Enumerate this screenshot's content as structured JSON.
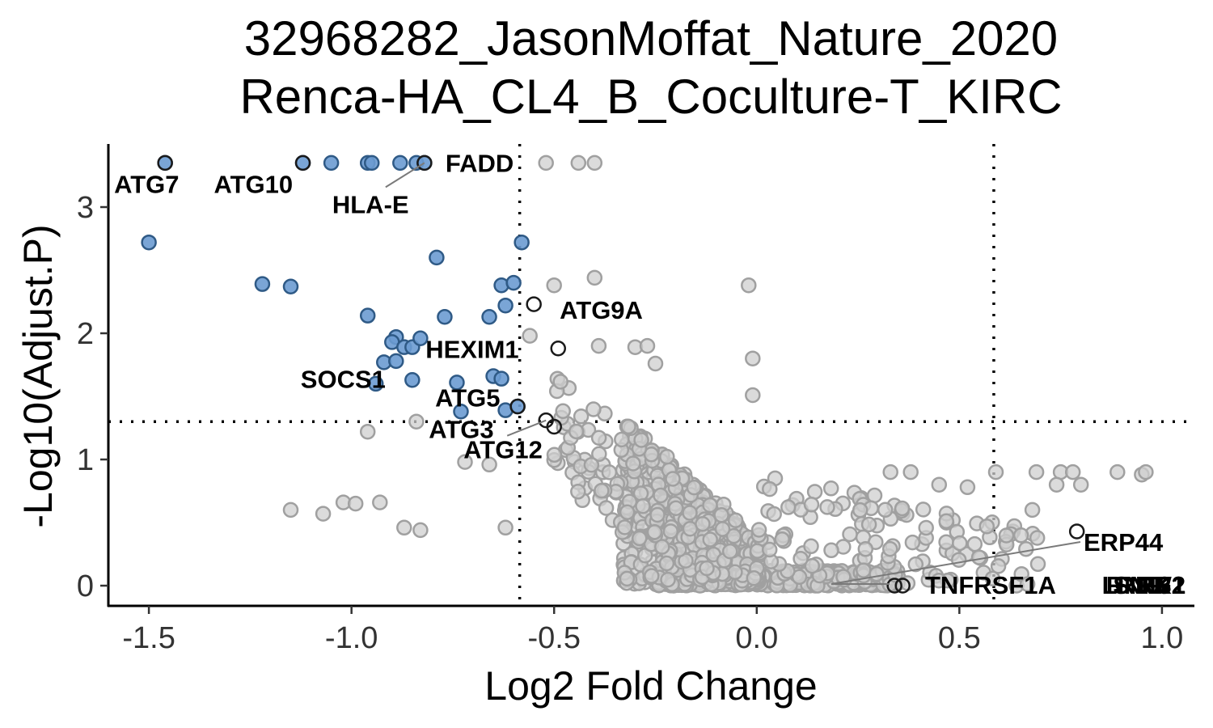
{
  "chart_data": {
    "type": "scatter",
    "title": "32968282_JasonMoffat_Nature_2020",
    "subtitle": "Renca-HA_CL4_B_Coculture-T_KIRC",
    "xlabel": "Log2 Fold Change",
    "ylabel": "-Log10(Adjust.P)",
    "xlim": [
      -1.6,
      1.08
    ],
    "ylim": [
      -0.16,
      3.5
    ],
    "xticks": [
      -1.5,
      -1.0,
      -0.5,
      0.0,
      0.5,
      1.0
    ],
    "xtick_labels": [
      "-1.5",
      "-1.0",
      "-0.5",
      "0.0",
      "0.5",
      "1.0"
    ],
    "yticks": [
      0,
      1,
      2,
      3
    ],
    "ytick_labels": [
      "0",
      "1",
      "2",
      "3"
    ],
    "thresholds": {
      "x": [
        -0.585,
        0.585
      ],
      "y": 1.3
    },
    "grid": false,
    "legend": "none",
    "colors": {
      "down": "#6b9bd1",
      "down_edge": "#2f5a86",
      "ns": "#cfcfcf",
      "ns_edge": "#a0a0a0",
      "highlight_edge": "#1a1a1a",
      "line": "#000000"
    },
    "series": [
      {
        "group": "down",
        "points": [
          [
            -1.46,
            3.35
          ],
          [
            -1.12,
            3.35
          ],
          [
            -1.05,
            3.35
          ],
          [
            -0.96,
            3.35
          ],
          [
            -0.95,
            3.35
          ],
          [
            -0.88,
            3.35
          ],
          [
            -0.84,
            3.35
          ],
          [
            -0.82,
            3.35
          ],
          [
            -1.5,
            2.72
          ],
          [
            -0.58,
            2.72
          ],
          [
            -0.79,
            2.6
          ],
          [
            -1.22,
            2.39
          ],
          [
            -1.15,
            2.37
          ],
          [
            -0.63,
            2.38
          ],
          [
            -0.6,
            2.4
          ],
          [
            -0.62,
            2.22
          ],
          [
            -0.96,
            2.14
          ],
          [
            -0.77,
            2.13
          ],
          [
            -0.66,
            2.13
          ],
          [
            -0.89,
            1.97
          ],
          [
            -0.9,
            1.93
          ],
          [
            -0.87,
            1.89
          ],
          [
            -0.85,
            1.89
          ],
          [
            -0.83,
            1.96
          ],
          [
            -0.92,
            1.77
          ],
          [
            -0.89,
            1.78
          ],
          [
            -0.85,
            1.63
          ],
          [
            -0.74,
            1.61
          ],
          [
            -0.94,
            1.6
          ],
          [
            -0.65,
            1.66
          ],
          [
            -0.63,
            1.64
          ],
          [
            -0.73,
            1.38
          ],
          [
            -0.62,
            1.39
          ],
          [
            -0.59,
            1.42
          ]
        ]
      },
      {
        "group": "highlight",
        "points": [
          [
            -1.46,
            3.35
          ],
          [
            -1.12,
            3.35
          ],
          [
            -0.82,
            3.35
          ],
          [
            -0.55,
            2.23
          ],
          [
            -0.49,
            1.88
          ],
          [
            -0.59,
            1.42
          ],
          [
            -0.52,
            1.31
          ],
          [
            -0.5,
            1.26
          ],
          [
            0.34,
            0.0
          ],
          [
            0.36,
            0.0
          ],
          [
            0.79,
            0.43
          ]
        ]
      }
    ],
    "labels": [
      {
        "text": "ATG7",
        "x": -1.46,
        "y": 3.35
      },
      {
        "text": "ATG10",
        "x": -1.12,
        "y": 3.35
      },
      {
        "text": "FADD",
        "x": -0.82,
        "y": 3.35
      },
      {
        "text": "HLA-E",
        "x": -0.82,
        "y": 3.35
      },
      {
        "text": "ATG9A",
        "x": -0.55,
        "y": 2.23
      },
      {
        "text": "HEXIM1",
        "x": -0.49,
        "y": 1.88
      },
      {
        "text": "SOCS1",
        "x": -0.89,
        "y": 1.78
      },
      {
        "text": "ATG5",
        "x": -0.59,
        "y": 1.42
      },
      {
        "text": "ATG3",
        "x": -0.52,
        "y": 1.31
      },
      {
        "text": "ATG12",
        "x": -0.5,
        "y": 1.26
      },
      {
        "text": "ERP44",
        "x": 0.79,
        "y": 0.43
      },
      {
        "text": "TNFRSF1A",
        "x": 0.34,
        "y": 0.0
      },
      {
        "text": "SNW1",
        "x": 0.35,
        "y": 0.0
      },
      {
        "text": "LRRK2",
        "x": 0.35,
        "y": 0.0
      },
      {
        "text": "RNF31",
        "x": 0.36,
        "y": 0.0
      },
      {
        "text": "NF2",
        "x": 0.36,
        "y": 0.0
      }
    ]
  }
}
